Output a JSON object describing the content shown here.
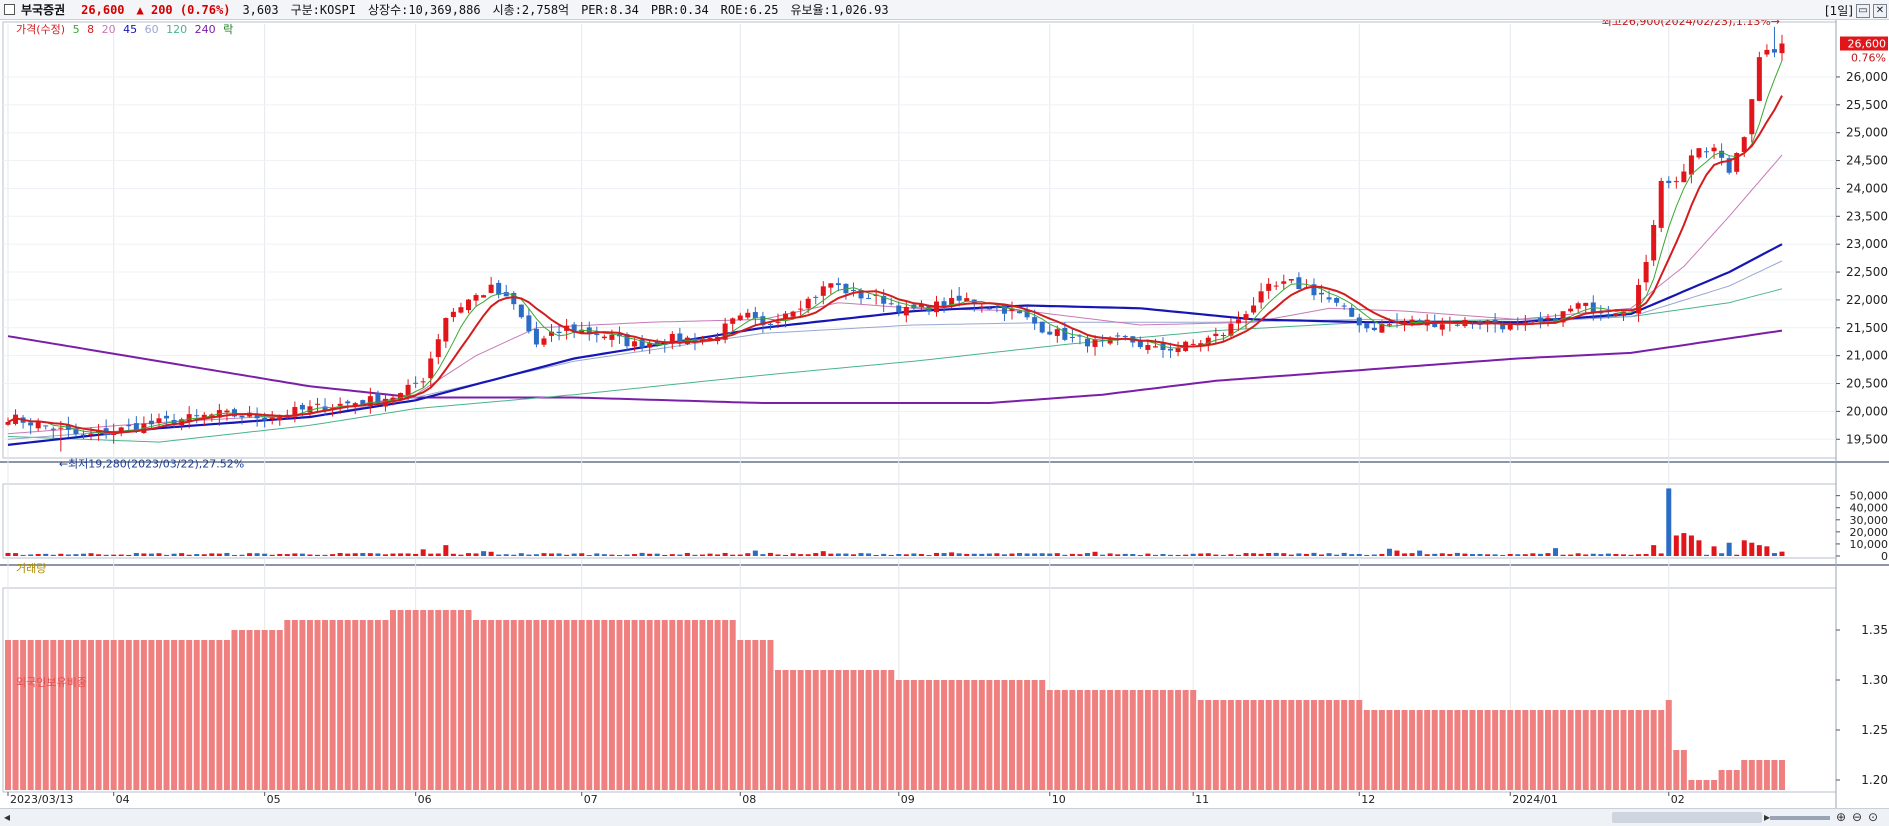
{
  "header": {
    "stock_name": "부국증권",
    "price": "26,600",
    "change": "▲ 200 (0.76%)",
    "volume": "3,603",
    "market": "구분:KOSPI",
    "shares": "상장수:10,369,886",
    "market_cap": "시총:2,758억",
    "per": "PER:8.34",
    "pbr": "PBR:0.34",
    "roe": "ROE:6.25",
    "float_ratio": "유보율:1,026.93",
    "period_label": "[1일]"
  },
  "legend": {
    "price": "가격(수정)",
    "ma5": "5",
    "ma8": "8",
    "ma20": "20",
    "ma45": "45",
    "ma60": "60",
    "ma120": "120",
    "ma240": "240",
    "fall": "락"
  },
  "colors": {
    "up": "#e0161b",
    "down": "#2b6cc4",
    "ma5": "#3aa832",
    "ma8": "#d31d1d",
    "ma20": "#c87ab8",
    "ma45": "#1616b4",
    "ma60": "#9aa7cf",
    "ma120": "#4bb38c",
    "ma240": "#7a1fa8",
    "foreign": "#f08080"
  },
  "annotations": {
    "high": "최고26,900(2024/02/23),1.13%→",
    "low": "←최저19,280(2023/03/22),27.52%",
    "last_price_tag": "26,600",
    "last_pct": "0.76%"
  },
  "panels": {
    "volume": "거래량",
    "foreign": "외국인보유비중"
  },
  "chart_data": [
    {
      "type": "candlestick",
      "title": "",
      "ylim": [
        19200,
        26950
      ],
      "y_ticks": [
        19500,
        20000,
        20500,
        21000,
        21500,
        22000,
        22500,
        23000,
        23500,
        24000,
        24500,
        25000,
        25500,
        26000
      ],
      "y_tick_labels": [
        "19,500",
        "20,000",
        "20,500",
        "21,000",
        "21,500",
        "22,000",
        "22,500",
        "23,000",
        "23,500",
        "24,000",
        "24,500",
        "25,000",
        "25,500",
        "26,000"
      ],
      "x_tick_labels": [
        "2023/03/13",
        "04",
        "05",
        "06",
        "07",
        "08",
        "09",
        "10",
        "11",
        "12",
        "2024/01",
        "02"
      ],
      "x_tick_positions": [
        0,
        14,
        34,
        54,
        76,
        97,
        118,
        138,
        157,
        179,
        199,
        220
      ],
      "grid": true,
      "anchors": [
        [
          0,
          19900
        ],
        [
          6,
          19700
        ],
        [
          10,
          19550
        ],
        [
          14,
          19650
        ],
        [
          20,
          19800
        ],
        [
          28,
          19950
        ],
        [
          34,
          19900
        ],
        [
          40,
          20050
        ],
        [
          48,
          20200
        ],
        [
          52,
          20300
        ],
        [
          55,
          20600
        ],
        [
          58,
          21700
        ],
        [
          61,
          22000
        ],
        [
          64,
          22200
        ],
        [
          67,
          21900
        ],
        [
          70,
          21200
        ],
        [
          74,
          21500
        ],
        [
          78,
          21400
        ],
        [
          83,
          21200
        ],
        [
          88,
          21300
        ],
        [
          93,
          21300
        ],
        [
          96,
          21600
        ],
        [
          98,
          21700
        ],
        [
          100,
          21500
        ],
        [
          103,
          21800
        ],
        [
          106,
          22000
        ],
        [
          109,
          22300
        ],
        [
          112,
          22100
        ],
        [
          116,
          22000
        ],
        [
          119,
          21800
        ],
        [
          123,
          21900
        ],
        [
          127,
          22000
        ],
        [
          130,
          21900
        ],
        [
          133,
          21800
        ],
        [
          137,
          21500
        ],
        [
          141,
          21300
        ],
        [
          145,
          21200
        ],
        [
          148,
          21300
        ],
        [
          152,
          21100
        ],
        [
          157,
          21200
        ],
        [
          161,
          21400
        ],
        [
          164,
          21800
        ],
        [
          167,
          22200
        ],
        [
          170,
          22300
        ],
        [
          174,
          22100
        ],
        [
          177,
          21800
        ],
        [
          180,
          21500
        ],
        [
          185,
          21600
        ],
        [
          190,
          21600
        ],
        [
          196,
          21600
        ],
        [
          200,
          21500
        ],
        [
          204,
          21600
        ],
        [
          208,
          21900
        ],
        [
          212,
          21800
        ],
        [
          215,
          21900
        ],
        [
          217,
          22600
        ],
        [
          219,
          24200
        ],
        [
          221,
          24100
        ],
        [
          223,
          24600
        ],
        [
          226,
          24700
        ],
        [
          228,
          24300
        ],
        [
          230,
          25000
        ],
        [
          232,
          26300
        ],
        [
          234,
          26500
        ],
        [
          235,
          26600
        ]
      ],
      "high": {
        "value": 26900,
        "date": "2024/02/23"
      },
      "low": {
        "value": 19280,
        "date": "2023/03/22"
      },
      "ma240": [
        [
          0,
          21350
        ],
        [
          40,
          20450
        ],
        [
          54,
          20250
        ],
        [
          75,
          20250
        ],
        [
          100,
          20150
        ],
        [
          130,
          20150
        ],
        [
          145,
          20300
        ],
        [
          160,
          20550
        ],
        [
          180,
          20750
        ],
        [
          200,
          20950
        ],
        [
          215,
          21050
        ],
        [
          235,
          21450
        ]
      ],
      "ma120": [
        [
          0,
          19550
        ],
        [
          20,
          19450
        ],
        [
          40,
          19750
        ],
        [
          54,
          20050
        ],
        [
          75,
          20300
        ],
        [
          100,
          20650
        ],
        [
          120,
          20900
        ],
        [
          140,
          21200
        ],
        [
          160,
          21450
        ],
        [
          180,
          21600
        ],
        [
          200,
          21650
        ],
        [
          215,
          21700
        ],
        [
          228,
          21950
        ],
        [
          235,
          22200
        ]
      ],
      "ma60": [
        [
          0,
          19500
        ],
        [
          20,
          19700
        ],
        [
          40,
          19900
        ],
        [
          54,
          20250
        ],
        [
          75,
          20900
        ],
        [
          100,
          21400
        ],
        [
          120,
          21550
        ],
        [
          140,
          21600
        ],
        [
          160,
          21600
        ],
        [
          180,
          21650
        ],
        [
          200,
          21600
        ],
        [
          215,
          21700
        ],
        [
          228,
          22250
        ],
        [
          235,
          22700
        ]
      ],
      "ma45": [
        [
          0,
          19400
        ],
        [
          20,
          19700
        ],
        [
          40,
          19900
        ],
        [
          54,
          20200
        ],
        [
          75,
          20950
        ],
        [
          100,
          21500
        ],
        [
          120,
          21800
        ],
        [
          135,
          21900
        ],
        [
          150,
          21850
        ],
        [
          165,
          21650
        ],
        [
          180,
          21600
        ],
        [
          200,
          21600
        ],
        [
          215,
          21750
        ],
        [
          228,
          22500
        ],
        [
          235,
          23000
        ]
      ],
      "ma20": [
        [
          0,
          19600
        ],
        [
          20,
          19800
        ],
        [
          40,
          19950
        ],
        [
          54,
          20300
        ],
        [
          62,
          21000
        ],
        [
          70,
          21500
        ],
        [
          85,
          21600
        ],
        [
          100,
          21650
        ],
        [
          110,
          21950
        ],
        [
          120,
          21850
        ],
        [
          135,
          21800
        ],
        [
          150,
          21550
        ],
        [
          165,
          21600
        ],
        [
          175,
          21850
        ],
        [
          185,
          21800
        ],
        [
          200,
          21650
        ],
        [
          215,
          21850
        ],
        [
          222,
          22600
        ],
        [
          228,
          23500
        ],
        [
          235,
          24600
        ]
      ],
      "volume": {
        "ylim": [
          0,
          58000
        ],
        "y_ticks": [
          0,
          10000,
          20000,
          30000,
          40000,
          50000
        ],
        "y_tick_labels": [
          "0",
          "10,000",
          "20,000",
          "30,000",
          "40,000",
          "50,000"
        ],
        "spikes": [
          [
            55,
            5500
          ],
          [
            58,
            9000
          ],
          [
            63,
            4000
          ],
          [
            64,
            3500
          ],
          [
            99,
            4500
          ],
          [
            108,
            4000
          ],
          [
            125,
            3000
          ],
          [
            144,
            3500
          ],
          [
            183,
            6000
          ],
          [
            184,
            4500
          ],
          [
            187,
            4500
          ],
          [
            205,
            6500
          ],
          [
            218,
            9000
          ],
          [
            220,
            56000
          ],
          [
            221,
            17000
          ],
          [
            222,
            19000
          ],
          [
            223,
            17000
          ],
          [
            224,
            13000
          ],
          [
            226,
            8000
          ],
          [
            228,
            11000
          ],
          [
            230,
            13000
          ],
          [
            231,
            11000
          ],
          [
            232,
            9000
          ],
          [
            233,
            8000
          ],
          [
            235,
            3603
          ]
        ]
      },
      "foreign": {
        "ylim": [
          1.19,
          1.39
        ],
        "y_ticks": [
          1.2,
          1.25,
          1.3,
          1.35
        ],
        "y_tick_labels": [
          "1.20",
          "1.25",
          "1.30",
          "1.35"
        ],
        "steps": [
          [
            0,
            1.34
          ],
          [
            30,
            1.35
          ],
          [
            37,
            1.36
          ],
          [
            51,
            1.37
          ],
          [
            62,
            1.36
          ],
          [
            97,
            1.34
          ],
          [
            102,
            1.31
          ],
          [
            118,
            1.3
          ],
          [
            138,
            1.29
          ],
          [
            158,
            1.28
          ],
          [
            180,
            1.27
          ],
          [
            220,
            1.28
          ],
          [
            221,
            1.23
          ],
          [
            223,
            1.2
          ],
          [
            227,
            1.21
          ],
          [
            230,
            1.22
          ]
        ]
      }
    }
  ]
}
